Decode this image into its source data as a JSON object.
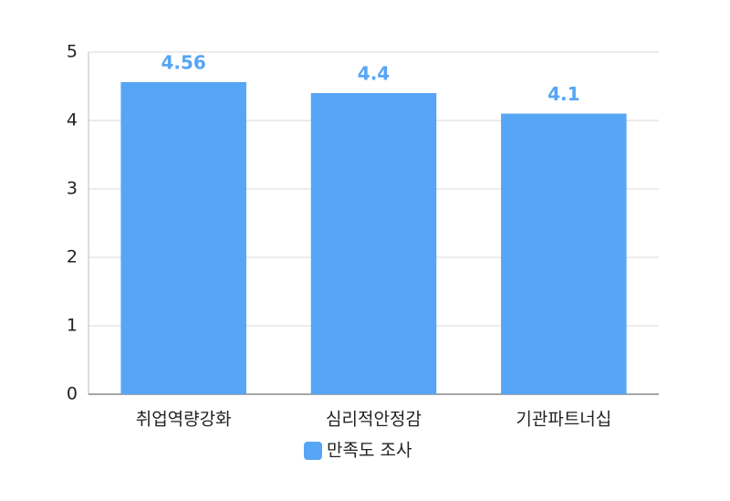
{
  "chart_data": {
    "type": "bar",
    "categories": [
      "취업역량강화",
      "심리적안정감",
      "기관파트너십"
    ],
    "series": [
      {
        "name": "만족도 조사",
        "color": "#57a5f5",
        "values": [
          4.56,
          4.4,
          4.1
        ]
      }
    ],
    "ylim": [
      0,
      5
    ],
    "yticks": [
      0,
      1,
      2,
      3,
      4,
      5
    ],
    "grid": true,
    "legend": "bottom"
  }
}
